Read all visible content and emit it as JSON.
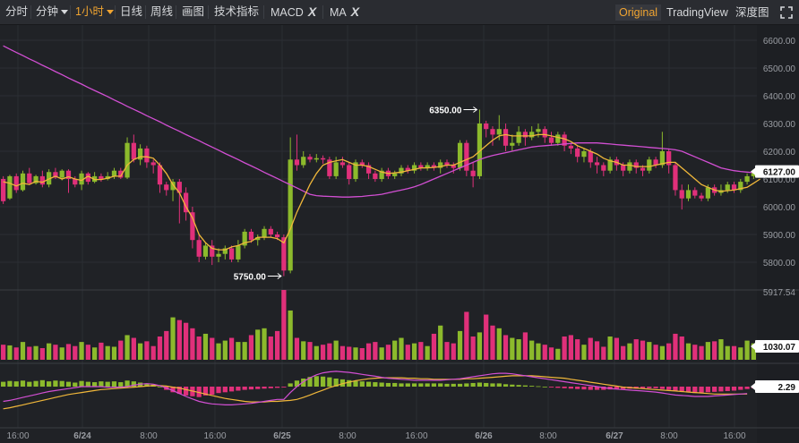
{
  "toolbar": {
    "items": [
      "分时",
      "分钟",
      "1小时",
      "日线",
      "周线",
      "画图",
      "技术指标"
    ],
    "indicators": [
      "MACD",
      "MA"
    ],
    "remove_glyph": "X",
    "right_buttons": [
      "Original",
      "TradingView",
      "深度图"
    ],
    "active_interval": "1小时",
    "active_view": "Original"
  },
  "colors": {
    "background": "#202226",
    "up": "#8cba2c",
    "down": "#e0307a",
    "ma_fast": "#f0b73a",
    "ma_slow": "#d24fd3",
    "price_tag": "#ffffff"
  },
  "chart_data": {
    "type": "candlestick",
    "x_tick_labels": [
      "16:00",
      "6/24",
      "8:00",
      "16:00",
      "6/25",
      "8:00",
      "16:00",
      "6/26",
      "8:00",
      "6/27",
      "8:00",
      "16:00"
    ],
    "price_axis": {
      "ticks": [
        5800,
        5900,
        6000,
        6100,
        6200,
        6300,
        6400,
        6500,
        6600
      ],
      "format": "0.00"
    },
    "current_price": "6127.00",
    "high_annotation": "6350.00",
    "low_annotation": "5750.00",
    "candles": [
      [
        6100,
        6020,
        6110,
        6010
      ],
      [
        6030,
        6110,
        6115,
        6025
      ],
      [
        6110,
        6060,
        6120,
        6050
      ],
      [
        6060,
        6120,
        6130,
        6055
      ],
      [
        6120,
        6085,
        6140,
        6080
      ],
      [
        6085,
        6110,
        6115,
        6080
      ],
      [
        6110,
        6080,
        6130,
        6070
      ],
      [
        6080,
        6125,
        6135,
        6070
      ],
      [
        6125,
        6105,
        6140,
        6100
      ],
      [
        6105,
        6130,
        6135,
        6095
      ],
      [
        6130,
        6100,
        6135,
        6050
      ],
      [
        6100,
        6080,
        6110,
        6070
      ],
      [
        6080,
        6120,
        6130,
        6060
      ],
      [
        6120,
        6090,
        6125,
        6080
      ],
      [
        6090,
        6110,
        6125,
        6085
      ],
      [
        6110,
        6100,
        6120,
        6090
      ],
      [
        6100,
        6110,
        6125,
        6095
      ],
      [
        6110,
        6130,
        6140,
        6100
      ],
      [
        6130,
        6105,
        6140,
        6100
      ],
      [
        6105,
        6230,
        6250,
        6100
      ],
      [
        6230,
        6170,
        6260,
        6160
      ],
      [
        6170,
        6210,
        6225,
        6150
      ],
      [
        6210,
        6160,
        6220,
        6140
      ],
      [
        6160,
        6150,
        6170,
        6120
      ],
      [
        6150,
        6080,
        6160,
        6050
      ],
      [
        6080,
        6060,
        6090,
        6040
      ],
      [
        6060,
        6090,
        6100,
        6020
      ],
      [
        6090,
        6050,
        6100,
        5940
      ],
      [
        6050,
        5980,
        6070,
        5950
      ],
      [
        5980,
        5880,
        6000,
        5850
      ],
      [
        5880,
        5820,
        5900,
        5800
      ],
      [
        5820,
        5860,
        5870,
        5810
      ],
      [
        5860,
        5820,
        5880,
        5790
      ],
      [
        5820,
        5830,
        5850,
        5800
      ],
      [
        5830,
        5850,
        5860,
        5810
      ],
      [
        5850,
        5810,
        5860,
        5800
      ],
      [
        5810,
        5860,
        5880,
        5800
      ],
      [
        5860,
        5910,
        5920,
        5850
      ],
      [
        5910,
        5880,
        5920,
        5870
      ],
      [
        5880,
        5890,
        5900,
        5860
      ],
      [
        5890,
        5920,
        5930,
        5880
      ],
      [
        5920,
        5900,
        5930,
        5890
      ],
      [
        5900,
        5890,
        5910,
        5880
      ],
      [
        5890,
        5770,
        5900,
        5750
      ],
      [
        5770,
        6170,
        6250,
        5760
      ],
      [
        6170,
        6150,
        6260,
        6130
      ],
      [
        6150,
        6180,
        6200,
        6140
      ],
      [
        6180,
        6170,
        6190,
        6160
      ],
      [
        6170,
        6175,
        6190,
        6160
      ],
      [
        6175,
        6170,
        6185,
        6155
      ],
      [
        6170,
        6110,
        6180,
        6100
      ],
      [
        6110,
        6160,
        6180,
        6100
      ],
      [
        6160,
        6150,
        6180,
        6140
      ],
      [
        6150,
        6100,
        6160,
        6080
      ],
      [
        6100,
        6160,
        6170,
        6090
      ],
      [
        6160,
        6150,
        6170,
        6140
      ],
      [
        6150,
        6120,
        6160,
        6100
      ],
      [
        6120,
        6100,
        6130,
        6090
      ],
      [
        6100,
        6130,
        6140,
        6090
      ],
      [
        6130,
        6110,
        6140,
        6100
      ],
      [
        6110,
        6120,
        6130,
        6100
      ],
      [
        6120,
        6140,
        6150,
        6110
      ],
      [
        6140,
        6130,
        6150,
        6120
      ],
      [
        6130,
        6150,
        6160,
        6120
      ],
      [
        6150,
        6140,
        6160,
        6130
      ],
      [
        6140,
        6150,
        6160,
        6130
      ],
      [
        6150,
        6140,
        6160,
        6130
      ],
      [
        6140,
        6160,
        6170,
        6120
      ],
      [
        6160,
        6150,
        6170,
        6140
      ],
      [
        6150,
        6140,
        6160,
        6120
      ],
      [
        6140,
        6230,
        6240,
        6130
      ],
      [
        6230,
        6130,
        6240,
        6110
      ],
      [
        6130,
        6110,
        6160,
        6070
      ],
      [
        6110,
        6300,
        6350,
        6100
      ],
      [
        6300,
        6280,
        6310,
        6250
      ],
      [
        6280,
        6260,
        6290,
        6220
      ],
      [
        6260,
        6280,
        6330,
        6240
      ],
      [
        6280,
        6220,
        6300,
        6200
      ],
      [
        6220,
        6230,
        6260,
        6200
      ],
      [
        6230,
        6270,
        6290,
        6220
      ],
      [
        6270,
        6250,
        6280,
        6220
      ],
      [
        6250,
        6270,
        6290,
        6240
      ],
      [
        6270,
        6280,
        6300,
        6250
      ],
      [
        6280,
        6250,
        6290,
        6230
      ],
      [
        6250,
        6230,
        6270,
        6220
      ],
      [
        6230,
        6260,
        6270,
        6220
      ],
      [
        6260,
        6220,
        6270,
        6200
      ],
      [
        6220,
        6210,
        6230,
        6190
      ],
      [
        6210,
        6180,
        6220,
        6160
      ],
      [
        6180,
        6200,
        6210,
        6160
      ],
      [
        6200,
        6160,
        6210,
        6140
      ],
      [
        6160,
        6150,
        6180,
        6120
      ],
      [
        6150,
        6130,
        6160,
        6110
      ],
      [
        6130,
        6170,
        6180,
        6120
      ],
      [
        6170,
        6150,
        6180,
        6130
      ],
      [
        6150,
        6130,
        6160,
        6110
      ],
      [
        6130,
        6160,
        6170,
        6120
      ],
      [
        6160,
        6140,
        6170,
        6120
      ],
      [
        6140,
        6130,
        6150,
        6110
      ],
      [
        6130,
        6170,
        6180,
        6120
      ],
      [
        6170,
        6150,
        6180,
        6140
      ],
      [
        6150,
        6200,
        6270,
        6140
      ],
      [
        6200,
        6150,
        6210,
        6120
      ],
      [
        6150,
        6060,
        6160,
        6040
      ],
      [
        6060,
        6030,
        6080,
        5990
      ],
      [
        6030,
        6060,
        6080,
        6020
      ],
      [
        6060,
        6040,
        6070,
        6030
      ],
      [
        6040,
        6030,
        6050,
        6020
      ],
      [
        6030,
        6070,
        6080,
        6020
      ],
      [
        6070,
        6050,
        6080,
        6040
      ],
      [
        6050,
        6060,
        6080,
        6040
      ],
      [
        6060,
        6080,
        6090,
        6050
      ],
      [
        6080,
        6060,
        6090,
        6050
      ],
      [
        6060,
        6090,
        6100,
        6050
      ],
      [
        6090,
        6110,
        6120,
        6080
      ],
      [
        6110,
        6127,
        6135,
        6100
      ]
    ],
    "ma_fast_line": [
      6090,
      6085,
      6075,
      6085,
      6080,
      6092,
      6088,
      6100,
      6110,
      6100,
      6108,
      6100,
      6095,
      6110,
      6098,
      6098,
      6103,
      6110,
      6110,
      6150,
      6170,
      6180,
      6180,
      6175,
      6150,
      6120,
      6080,
      6050,
      6000,
      5960,
      5900,
      5870,
      5850,
      5845,
      5845,
      5855,
      5860,
      5870,
      5875,
      5890,
      5890,
      5890,
      5885,
      5870,
      5920,
      5980,
      6030,
      6080,
      6120,
      6150,
      6160,
      6165,
      6170,
      6160,
      6150,
      6150,
      6145,
      6135,
      6125,
      6120,
      6122,
      6125,
      6130,
      6135,
      6140,
      6140,
      6142,
      6145,
      6150,
      6150,
      6160,
      6170,
      6180,
      6200,
      6220,
      6240,
      6255,
      6260,
      6255,
      6255,
      6255,
      6255,
      6260,
      6260,
      6255,
      6250,
      6245,
      6235,
      6220,
      6210,
      6200,
      6190,
      6175,
      6165,
      6160,
      6150,
      6150,
      6145,
      6145,
      6145,
      6150,
      6155,
      6160,
      6160,
      6140,
      6120,
      6100,
      6080,
      6070,
      6060,
      6055,
      6058,
      6060,
      6065,
      6070,
      6085,
      6100
    ],
    "ma_slow_line": [
      6580,
      6568,
      6556,
      6545,
      6533,
      6522,
      6510,
      6499,
      6487,
      6476,
      6464,
      6453,
      6442,
      6430,
      6419,
      6408,
      6397,
      6385,
      6374,
      6362,
      6351,
      6340,
      6328,
      6317,
      6306,
      6294,
      6283,
      6272,
      6260,
      6249,
      6238,
      6226,
      6215,
      6204,
      6192,
      6181,
      6170,
      6158,
      6147,
      6136,
      6124,
      6113,
      6102,
      6090,
      6079,
      6068,
      6056,
      6045,
      6040,
      6038,
      6037,
      6036,
      6035,
      6035,
      6036,
      6037,
      6040,
      6042,
      6045,
      6050,
      6055,
      6060,
      6065,
      6072,
      6080,
      6090,
      6100,
      6110,
      6120,
      6130,
      6140,
      6150,
      6160,
      6170,
      6178,
      6185,
      6190,
      6195,
      6200,
      6205,
      6210,
      6215,
      6218,
      6220,
      6222,
      6224,
      6226,
      6228,
      6230,
      6230,
      6230,
      6230,
      6228,
      6226,
      6224,
      6222,
      6220,
      6218,
      6216,
      6214,
      6212,
      6210,
      6208,
      6205,
      6200,
      6190,
      6180,
      6170,
      6160,
      6150,
      6140,
      6135,
      6130,
      6127,
      6125,
      6123,
      6122
    ],
    "volume_axis": {
      "labels": [
        "5917.54",
        "1030.07"
      ]
    },
    "volume": [
      1100,
      1050,
      900,
      1300,
      950,
      1000,
      850,
      1200,
      1100,
      900,
      1150,
      1000,
      1300,
      1100,
      900,
      1250,
      1000,
      950,
      1400,
      1800,
      1600,
      1200,
      1350,
      1000,
      1700,
      2100,
      3100,
      2900,
      2700,
      2300,
      1700,
      1900,
      1600,
      1200,
      1400,
      1600,
      1300,
      1300,
      1800,
      2200,
      2300,
      1700,
      2100,
      5100,
      3600,
      1600,
      1350,
      1300,
      1000,
      1100,
      1200,
      1400,
      1000,
      950,
      900,
      850,
      1200,
      1300,
      900,
      1100,
      1400,
      1600,
      1100,
      1200,
      1300,
      1000,
      1900,
      2500,
      1300,
      1200,
      2100,
      3500,
      1700,
      2000,
      3300,
      2500,
      2300,
      1800,
      1600,
      1500,
      2000,
      1400,
      1200,
      1100,
      900,
      800,
      1700,
      1800,
      1500,
      1100,
      1600,
      1350,
      950,
      1700,
      1600,
      1000,
      1200,
      1500,
      1400,
      1300,
      1100,
      1000,
      1200,
      1900,
      1700,
      1200,
      1100,
      1000,
      1300,
      1350,
      1500,
      1000,
      1000,
      900,
      1400,
      1200
    ],
    "macd_axis_label": "2.29",
    "macd_hist": [
      12,
      14,
      13,
      15,
      12,
      14,
      16,
      13,
      15,
      14,
      12,
      10,
      14,
      12,
      11,
      13,
      12,
      13,
      11,
      15,
      13,
      10,
      8,
      5,
      0,
      -8,
      -14,
      -18,
      -22,
      -24,
      -26,
      -22,
      -20,
      -16,
      -14,
      -12,
      -10,
      -8,
      -7,
      -6,
      -5,
      -4,
      -3,
      -2,
      8,
      15,
      20,
      24,
      26,
      25,
      23,
      20,
      18,
      16,
      14,
      13,
      12,
      11,
      10,
      9,
      9,
      8,
      8,
      8,
      8,
      8,
      8,
      8,
      7,
      7,
      7,
      8,
      9,
      10,
      9,
      8,
      8,
      6,
      5,
      4,
      3,
      2,
      1,
      0,
      -2,
      -3,
      -4,
      -5,
      -6,
      -7,
      -8,
      -8,
      -8,
      -7,
      -6,
      -6,
      -5,
      -5,
      -4,
      -4,
      -4,
      -6,
      -8,
      -10,
      -12,
      -14,
      -16,
      -15,
      -14,
      -13,
      -12,
      -11,
      -10,
      -8,
      -6,
      -4
    ],
    "macd_line": [
      -30,
      -28,
      -25,
      -22,
      -19,
      -16,
      -13,
      -10,
      -8,
      -6,
      -4,
      -2,
      0,
      0,
      0,
      0,
      -1,
      -1,
      -1,
      0,
      3,
      5,
      6,
      5,
      2,
      -3,
      -8,
      -14,
      -20,
      -25,
      -30,
      -33,
      -35,
      -36,
      -37,
      -37,
      -36,
      -35,
      -34,
      -32,
      -30,
      -28,
      -26,
      -26,
      -12,
      0,
      10,
      18,
      24,
      28,
      30,
      31,
      30,
      29,
      27,
      25,
      23,
      21,
      19,
      17,
      16,
      15,
      14,
      13,
      13,
      13,
      13,
      13,
      14,
      15,
      16,
      18,
      20,
      22,
      24,
      26,
      27,
      27,
      26,
      24,
      22,
      20,
      18,
      16,
      14,
      12,
      10,
      8,
      6,
      4,
      2,
      0,
      -2,
      -4,
      -5,
      -6,
      -7,
      -8,
      -9,
      -10,
      -11,
      -13,
      -15,
      -17,
      -18,
      -19,
      -20,
      -20,
      -20,
      -19,
      -18,
      -17,
      -16,
      -15,
      -14
    ],
    "signal_line": [
      -45,
      -43,
      -40,
      -37,
      -34,
      -31,
      -28,
      -25,
      -22,
      -19,
      -16,
      -14,
      -12,
      -10,
      -8,
      -6,
      -5,
      -4,
      -3,
      -2,
      -1,
      0,
      1,
      2,
      2,
      1,
      -1,
      -3,
      -6,
      -9,
      -12,
      -15,
      -18,
      -21,
      -24,
      -26,
      -28,
      -30,
      -31,
      -31,
      -31,
      -30,
      -30,
      -29,
      -28,
      -26,
      -22,
      -17,
      -12,
      -7,
      -2,
      2,
      6,
      9,
      12,
      14,
      16,
      17,
      18,
      18,
      18,
      18,
      17,
      17,
      16,
      16,
      15,
      15,
      15,
      15,
      15,
      16,
      16,
      17,
      18,
      19,
      20,
      21,
      22,
      22,
      22,
      22,
      21,
      20,
      19,
      18,
      17,
      15,
      13,
      11,
      9,
      7,
      5,
      3,
      1,
      -1,
      -2,
      -3,
      -4,
      -5,
      -6,
      -7,
      -8,
      -9,
      -10,
      -11,
      -12,
      -13,
      -14,
      -15,
      -15,
      -15,
      -15,
      -15,
      -15
    ]
  }
}
